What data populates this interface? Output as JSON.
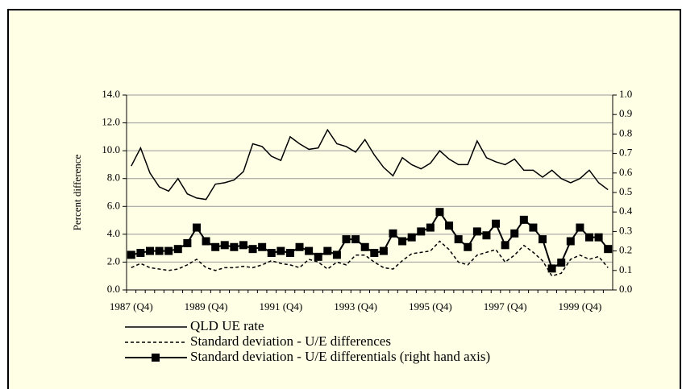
{
  "chart_data": {
    "type": "line",
    "y_label": "Percent difference",
    "categories": [
      "1987 (Q4)",
      null,
      null,
      null,
      null,
      null,
      null,
      null,
      "1989 (Q4)",
      null,
      null,
      null,
      null,
      null,
      null,
      null,
      "1991 (Q4)",
      null,
      null,
      null,
      null,
      null,
      null,
      null,
      "1993 (Q4)",
      null,
      null,
      null,
      null,
      null,
      null,
      null,
      "1995 (Q4)",
      null,
      null,
      null,
      null,
      null,
      null,
      null,
      "1997 (Q4)",
      null,
      null,
      null,
      null,
      null,
      null,
      null,
      "1999 (Q4)",
      null,
      null,
      null
    ],
    "ylim": [
      0,
      14
    ],
    "yticks": [
      {
        "value": 0,
        "label": "0.0"
      },
      {
        "value": 2,
        "label": "2.0"
      },
      {
        "value": 4,
        "label": "4.0"
      },
      {
        "value": 6,
        "label": "6.0"
      },
      {
        "value": 8,
        "label": "8.0"
      },
      {
        "value": 10,
        "label": "10.0"
      },
      {
        "value": 12,
        "label": "12.0"
      },
      {
        "value": 14,
        "label": "14.0"
      }
    ],
    "y2lim": [
      0,
      1
    ],
    "y2ticks": [
      {
        "value": 0,
        "label": "0.0"
      },
      {
        "value": 0.1,
        "label": "0.1"
      },
      {
        "value": 0.2,
        "label": "0.2"
      },
      {
        "value": 0.3,
        "label": "0.3"
      },
      {
        "value": 0.4,
        "label": "0.4"
      },
      {
        "value": 0.5,
        "label": "0.5"
      },
      {
        "value": 0.6,
        "label": "0.6"
      },
      {
        "value": 0.7,
        "label": "0.7"
      },
      {
        "value": 0.8,
        "label": "0.8"
      },
      {
        "value": 0.9,
        "label": "0.9"
      },
      {
        "value": 1,
        "label": "1.0"
      }
    ],
    "grid": true,
    "series": [
      {
        "name": "QLD UE rate",
        "color": "#000000",
        "style": "solid",
        "values": [
          8.9,
          10.2,
          8.4,
          7.4,
          7.1,
          8.0,
          6.9,
          6.6,
          6.5,
          7.6,
          7.7,
          7.9,
          8.5,
          10.5,
          10.3,
          9.6,
          9.3,
          11.0,
          10.5,
          10.1,
          10.2,
          11.5,
          10.5,
          10.3,
          9.9,
          10.8,
          9.7,
          8.8,
          8.2,
          9.5,
          9.0,
          8.7,
          9.1,
          10.0,
          9.4,
          9.0,
          9.0,
          10.7,
          9.5,
          9.2,
          9.0,
          9.4,
          8.6,
          8.6,
          8.1,
          8.6,
          8.0,
          7.7,
          8.0,
          8.6,
          7.7,
          7.2
        ]
      },
      {
        "name": "Standard deviation - U/E differences",
        "color": "#000000",
        "style": "dashed",
        "values": [
          1.6,
          1.9,
          1.6,
          1.5,
          1.4,
          1.5,
          1.8,
          2.2,
          1.6,
          1.4,
          1.6,
          1.6,
          1.7,
          1.6,
          1.8,
          2.1,
          1.9,
          1.8,
          1.6,
          2.2,
          2.0,
          1.5,
          2.0,
          1.8,
          2.5,
          2.5,
          2.0,
          1.6,
          1.5,
          2.1,
          2.6,
          2.7,
          2.8,
          3.5,
          2.9,
          2.0,
          1.8,
          2.5,
          2.7,
          2.9,
          2.0,
          2.5,
          3.2,
          2.7,
          2.1,
          1.0,
          1.2,
          2.2,
          2.5,
          2.2,
          2.4,
          1.6
        ]
      },
      {
        "name": "Standard deviation - U/E differentials (right hand axis)",
        "color": "#000000",
        "style": "markers",
        "axis": "y2",
        "values": [
          0.18,
          0.19,
          0.2,
          0.2,
          0.2,
          0.21,
          0.24,
          0.32,
          0.25,
          0.22,
          0.23,
          0.22,
          0.23,
          0.21,
          0.22,
          0.19,
          0.2,
          0.19,
          0.22,
          0.2,
          0.17,
          0.2,
          0.18,
          0.26,
          0.26,
          0.22,
          0.19,
          0.2,
          0.29,
          0.25,
          0.27,
          0.3,
          0.32,
          0.4,
          0.33,
          0.26,
          0.22,
          0.3,
          0.28,
          0.34,
          0.23,
          0.29,
          0.36,
          0.32,
          0.26,
          0.11,
          0.14,
          0.25,
          0.32,
          0.27,
          0.27,
          0.21
        ]
      }
    ]
  }
}
